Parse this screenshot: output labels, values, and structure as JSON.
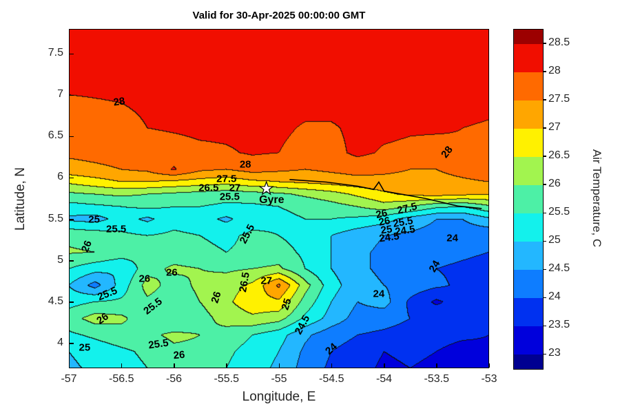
{
  "figure": {
    "background": "#ffffff"
  },
  "chart_data": {
    "type": "heatmap",
    "subtype": "filled-contour-map",
    "title": "Valid for 30-Apr-2025 00:00:00 GMT",
    "xlabel": "Longitude, E",
    "ylabel": "Latitude, N",
    "colorbar_label": "Air Temperature, C",
    "xlim": [
      -57,
      -53
    ],
    "ylim": [
      3.7,
      7.8
    ],
    "xticks": [
      -57,
      -56.5,
      -56,
      -55.5,
      -55,
      -54.5,
      -54,
      -53.5,
      -53
    ],
    "yticks": [
      4,
      4.5,
      5,
      5.5,
      6,
      6.5,
      7,
      7.5
    ],
    "colorbar_ticks": [
      23,
      23.5,
      24,
      24.5,
      25,
      25.5,
      26,
      26.5,
      27,
      27.5,
      28,
      28.5
    ],
    "colorbar_range": [
      22.75,
      28.75
    ],
    "contour_interval": 0.5,
    "levels": [
      23,
      23.5,
      24,
      24.5,
      25,
      25.5,
      26,
      26.5,
      27,
      27.5,
      28,
      28.5
    ],
    "band_colors": [
      "#000091",
      "#0000dc",
      "#0031f0",
      "#0e7dff",
      "#23b7ff",
      "#13f1ec",
      "#4df0a6",
      "#a2f44f",
      "#fff100",
      "#ffa600",
      "#ff6a00",
      "#f10e00",
      "#9c0000"
    ],
    "grid_on": false,
    "lons": [
      -57,
      -56.75,
      -56.5,
      -56.25,
      -56,
      -55.75,
      -55.5,
      -55.25,
      -55,
      -54.75,
      -54.5,
      -54.25,
      -54,
      -53.75,
      -53.5,
      -53.25,
      -53
    ],
    "lats": [
      3.7,
      3.9,
      4.1,
      4.3,
      4.5,
      4.7,
      4.9,
      5.1,
      5.3,
      5.5,
      5.65,
      5.8,
      5.95,
      6.1,
      6.3,
      6.6,
      6.9,
      7.2,
      7.5,
      7.8
    ],
    "temps_c": [
      [
        24.9,
        25.1,
        25.3,
        25.5,
        25.8,
        25.8,
        25.5,
        25.2,
        24.9,
        24.3,
        23.9,
        23.7,
        23.4,
        23.5,
        23.4,
        23.2,
        23.3
      ],
      [
        25.0,
        25.2,
        25.4,
        25.6,
        25.9,
        25.9,
        25.6,
        25.3,
        25.0,
        24.4,
        24.0,
        23.8,
        23.5,
        23.6,
        23.5,
        23.3,
        23.4
      ],
      [
        25.4,
        25.6,
        25.8,
        25.9,
        26.1,
        26.0,
        25.8,
        25.5,
        25.2,
        24.6,
        24.2,
        24.0,
        23.9,
        23.8,
        23.7,
        23.6,
        23.5
      ],
      [
        25.8,
        26.2,
        26.1,
        25.7,
        25.5,
        25.8,
        26.2,
        26.4,
        26.2,
        25.4,
        24.8,
        24.3,
        24.2,
        24.0,
        23.9,
        23.8,
        23.7
      ],
      [
        25.3,
        25.5,
        25.6,
        25.9,
        25.7,
        26.0,
        26.4,
        26.8,
        26.9,
        25.8,
        25.0,
        24.5,
        24.7,
        23.9,
        23.4,
        23.8,
        23.6
      ],
      [
        25.0,
        24.3,
        25.2,
        26.2,
        25.8,
        26.1,
        26.3,
        26.6,
        27.6,
        26.2,
        25.2,
        24.7,
        24.5,
        24.3,
        24.1,
        23.9,
        23.7
      ],
      [
        25.5,
        25.2,
        25.0,
        25.8,
        26.1,
        26.0,
        25.9,
        26.0,
        26.1,
        25.5,
        25.0,
        24.6,
        24.4,
        24.2,
        24.0,
        23.9,
        23.8
      ],
      [
        26.05,
        26.0,
        25.8,
        25.6,
        25.7,
        25.6,
        25.5,
        25.6,
        25.7,
        25.4,
        25.0,
        24.6,
        24.4,
        24.3,
        24.2,
        24.1,
        24.0
      ],
      [
        25.9,
        25.8,
        25.6,
        25.5,
        25.6,
        25.5,
        25.4,
        25.6,
        25.5,
        25.3,
        25.0,
        24.7,
        24.5,
        24.4,
        24.3,
        24.2,
        24.1
      ],
      [
        24.9,
        24.8,
        25.2,
        24.9,
        25.3,
        25.2,
        24.9,
        25.3,
        25.4,
        25.5,
        25.5,
        25.4,
        25.2,
        24.8,
        24.5,
        24.5,
        24.9
      ],
      [
        25.3,
        25.4,
        25.5,
        25.6,
        25.5,
        25.5,
        25.4,
        25.4,
        25.5,
        25.6,
        25.8,
        26.0,
        26.3,
        26.0,
        25.6,
        25.5,
        25.9
      ],
      [
        25.9,
        26.0,
        26.1,
        26.0,
        25.9,
        25.8,
        25.7,
        25.8,
        25.9,
        26.1,
        26.3,
        26.6,
        26.9,
        27.1,
        27.2,
        27.1,
        27.0
      ],
      [
        26.6,
        26.8,
        27.0,
        27.0,
        26.9,
        26.8,
        26.7,
        26.9,
        27.0,
        27.1,
        27.2,
        27.3,
        27.35,
        27.35,
        27.4,
        27.45,
        27.5
      ],
      [
        27.3,
        27.4,
        27.5,
        27.6,
        28.05,
        27.6,
        27.5,
        27.7,
        27.6,
        27.5,
        27.6,
        27.7,
        27.6,
        27.5,
        27.5,
        27.6,
        27.7
      ],
      [
        27.6,
        27.65,
        27.7,
        27.75,
        27.8,
        27.9,
        27.95,
        28.05,
        28.0,
        27.8,
        27.85,
        28.1,
        27.95,
        27.9,
        27.85,
        27.95,
        28.0
      ],
      [
        27.8,
        27.85,
        27.9,
        28.0,
        28.05,
        28.1,
        28.1,
        28.1,
        28.1,
        27.95,
        27.95,
        28.1,
        28.1,
        28.05,
        28.05,
        28.0,
        27.95
      ],
      [
        27.9,
        27.95,
        28.0,
        28.05,
        28.1,
        28.15,
        28.15,
        28.15,
        28.15,
        28.15,
        28.15,
        28.15,
        28.15,
        28.15,
        28.15,
        28.15,
        28.1
      ],
      [
        28.2,
        28.2,
        28.2,
        28.2,
        28.2,
        28.2,
        28.2,
        28.2,
        28.2,
        28.2,
        28.2,
        28.2,
        28.2,
        28.2,
        28.2,
        28.2,
        28.2
      ],
      [
        28.25,
        28.25,
        28.25,
        28.25,
        28.25,
        28.25,
        28.25,
        28.25,
        28.25,
        28.25,
        28.25,
        28.25,
        28.25,
        28.25,
        28.25,
        28.25,
        28.25
      ],
      [
        28.3,
        28.3,
        28.3,
        28.3,
        28.3,
        28.3,
        28.3,
        28.3,
        28.3,
        28.3,
        28.3,
        28.3,
        28.3,
        28.3,
        28.3,
        28.3,
        28.3
      ]
    ],
    "contour_labels": [
      {
        "t": "28",
        "lon": -56.52,
        "lat": 6.92,
        "rot": -8
      },
      {
        "t": "28",
        "lon": -55.32,
        "lat": 6.16,
        "rot": 0
      },
      {
        "t": "28",
        "lon": -53.4,
        "lat": 6.31,
        "rot": -52
      },
      {
        "t": "27.5",
        "lon": -55.5,
        "lat": 5.99,
        "rot": 0
      },
      {
        "t": "26.5",
        "lon": -55.67,
        "lat": 5.88,
        "rot": 0
      },
      {
        "t": "27",
        "lon": -55.42,
        "lat": 5.88,
        "rot": 0
      },
      {
        "t": "25.5",
        "lon": -55.47,
        "lat": 5.77,
        "rot": 0
      },
      {
        "t": "25",
        "lon": -56.76,
        "lat": 5.5,
        "rot": 0
      },
      {
        "t": "25.5",
        "lon": -56.55,
        "lat": 5.38,
        "rot": 0
      },
      {
        "t": "26",
        "lon": -56.83,
        "lat": 5.17,
        "rot": -68
      },
      {
        "t": "26",
        "lon": -56.28,
        "lat": 4.78,
        "rot": 0
      },
      {
        "t": "26",
        "lon": -56.02,
        "lat": 4.86,
        "rot": 0
      },
      {
        "t": "25.5",
        "lon": -56.63,
        "lat": 4.6,
        "rot": -22
      },
      {
        "t": "26",
        "lon": -56.68,
        "lat": 4.3,
        "rot": -35
      },
      {
        "t": "25.5",
        "lon": -56.2,
        "lat": 4.45,
        "rot": -38
      },
      {
        "t": "26",
        "lon": -55.6,
        "lat": 4.56,
        "rot": -72
      },
      {
        "t": "26.5",
        "lon": -55.33,
        "lat": 4.74,
        "rot": -80
      },
      {
        "t": "27",
        "lon": -55.12,
        "lat": 4.76,
        "rot": 0
      },
      {
        "t": "25.5",
        "lon": -55.3,
        "lat": 5.32,
        "rot": -62
      },
      {
        "t": "25",
        "lon": -54.93,
        "lat": 4.47,
        "rot": -72
      },
      {
        "t": "24.5",
        "lon": -54.78,
        "lat": 4.22,
        "rot": -62
      },
      {
        "t": "24",
        "lon": -54.05,
        "lat": 4.6,
        "rot": 0
      },
      {
        "t": "24",
        "lon": -54.5,
        "lat": 3.93,
        "rot": -42
      },
      {
        "t": "24",
        "lon": -53.52,
        "lat": 4.93,
        "rot": -60
      },
      {
        "t": "25",
        "lon": -56.85,
        "lat": 3.95,
        "rot": 0
      },
      {
        "t": "25.5",
        "lon": -56.15,
        "lat": 3.99,
        "rot": -8
      },
      {
        "t": "26",
        "lon": -55.95,
        "lat": 3.86,
        "rot": -5
      },
      {
        "t": "27.5",
        "lon": -53.78,
        "lat": 5.63,
        "rot": -14
      },
      {
        "t": "26",
        "lon": -54.02,
        "lat": 5.56,
        "rot": -12
      },
      {
        "t": "26",
        "lon": -54.0,
        "lat": 5.47,
        "rot": -10
      },
      {
        "t": "25.5",
        "lon": -53.82,
        "lat": 5.46,
        "rot": -10
      },
      {
        "t": "25",
        "lon": -53.98,
        "lat": 5.37,
        "rot": -8
      },
      {
        "t": "24.5",
        "lon": -53.8,
        "lat": 5.36,
        "rot": -8
      },
      {
        "t": "24.5",
        "lon": -53.95,
        "lat": 5.28,
        "rot": -8
      },
      {
        "t": "24",
        "lon": -53.35,
        "lat": 5.27,
        "rot": 0
      }
    ],
    "station": {
      "name": "Gyre",
      "lon": -55.12,
      "lat": 5.87,
      "label_lon": -55.07,
      "label_lat": 5.73
    },
    "track_points": [
      [
        -54.9,
        5.98
      ],
      [
        -54.55,
        5.95
      ],
      [
        -54.25,
        5.9
      ],
      [
        -54.1,
        5.86
      ],
      [
        -54.05,
        5.95
      ],
      [
        -54.0,
        5.84
      ],
      [
        -53.6,
        5.75
      ],
      [
        -53.3,
        5.66
      ],
      [
        -53.07,
        5.63
      ]
    ]
  }
}
